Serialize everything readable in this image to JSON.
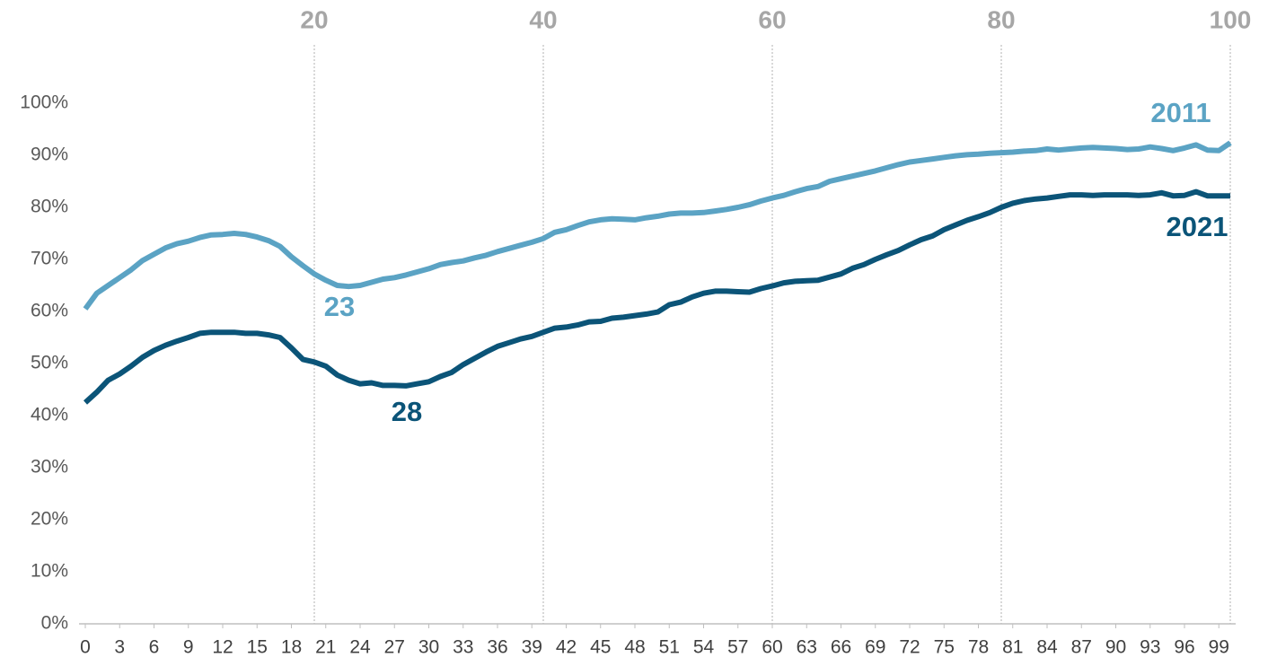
{
  "chart_data": {
    "type": "line",
    "x": [
      0,
      1,
      2,
      3,
      4,
      5,
      6,
      7,
      8,
      9,
      10,
      11,
      12,
      13,
      14,
      15,
      16,
      17,
      18,
      19,
      20,
      21,
      22,
      23,
      24,
      25,
      26,
      27,
      28,
      29,
      30,
      31,
      32,
      33,
      34,
      35,
      36,
      37,
      38,
      39,
      40,
      41,
      42,
      43,
      44,
      45,
      46,
      47,
      48,
      49,
      50,
      51,
      52,
      53,
      54,
      55,
      56,
      57,
      58,
      59,
      60,
      61,
      62,
      63,
      64,
      65,
      66,
      67,
      68,
      69,
      70,
      71,
      72,
      73,
      74,
      75,
      76,
      77,
      78,
      79,
      80,
      81,
      82,
      83,
      84,
      85,
      86,
      87,
      88,
      89,
      90,
      91,
      92,
      93,
      94,
      95,
      96,
      97,
      98,
      99,
      100
    ],
    "series": [
      {
        "name": "2011",
        "color": "#5ba3c4",
        "values": [
          60.5,
          63.5,
          65,
          66.5,
          68,
          69.8,
          71,
          72.2,
          73,
          73.5,
          74.2,
          74.7,
          74.8,
          75,
          74.8,
          74.3,
          73.6,
          72.5,
          70.5,
          68.8,
          67.2,
          66,
          65,
          64.8,
          65,
          65.6,
          66.2,
          66.5,
          67,
          67.6,
          68.2,
          69,
          69.4,
          69.7,
          70.3,
          70.8,
          71.5,
          72.1,
          72.7,
          73.3,
          74,
          75.2,
          75.7,
          76.5,
          77.2,
          77.6,
          77.8,
          77.7,
          77.6,
          78,
          78.3,
          78.7,
          78.9,
          78.9,
          79,
          79.3,
          79.6,
          80,
          80.5,
          81.2,
          81.8,
          82.3,
          83,
          83.6,
          84,
          85,
          85.5,
          86,
          86.5,
          87,
          87.6,
          88.2,
          88.7,
          89,
          89.3,
          89.6,
          89.9,
          90.1,
          90.2,
          90.4,
          90.5,
          90.6,
          90.8,
          90.9,
          91.2,
          91,
          91.2,
          91.4,
          91.5,
          91.4,
          91.3,
          91.1,
          91.2,
          91.6,
          91.3,
          90.9,
          91.4,
          92,
          91,
          90.9,
          92.4
        ]
      },
      {
        "name": "2021",
        "color": "#0b5478",
        "values": [
          42.5,
          44.5,
          46.8,
          48,
          49.5,
          51.2,
          52.5,
          53.5,
          54.3,
          55,
          55.8,
          56,
          56,
          56,
          55.8,
          55.8,
          55.5,
          55,
          53,
          50.8,
          50.3,
          49.5,
          47.8,
          46.8,
          46.1,
          46.3,
          45.8,
          45.8,
          45.7,
          46.1,
          46.5,
          47.5,
          48.3,
          49.8,
          51,
          52.2,
          53.3,
          54,
          54.7,
          55.2,
          56,
          56.8,
          57,
          57.4,
          58,
          58.1,
          58.7,
          58.9,
          59.2,
          59.5,
          59.9,
          61.3,
          61.8,
          62.8,
          63.5,
          63.9,
          63.9,
          63.8,
          63.7,
          64.4,
          64.9,
          65.5,
          65.8,
          65.9,
          66,
          66.6,
          67.2,
          68.3,
          69,
          70,
          70.9,
          71.7,
          72.8,
          73.8,
          74.5,
          75.7,
          76.6,
          77.5,
          78.2,
          79,
          80,
          80.8,
          81.3,
          81.6,
          81.8,
          82.1,
          82.4,
          82.4,
          82.3,
          82.4,
          82.4,
          82.4,
          82.3,
          82.4,
          82.8,
          82.2,
          82.3,
          83,
          82.2,
          82.2,
          82.2
        ]
      }
    ],
    "annotations": [
      {
        "text": "23",
        "series": 0
      },
      {
        "text": "28",
        "series": 1
      }
    ],
    "xlim": [
      0,
      100
    ],
    "xticks": [
      0,
      3,
      6,
      9,
      12,
      15,
      18,
      21,
      24,
      27,
      30,
      33,
      36,
      39,
      42,
      45,
      48,
      51,
      54,
      57,
      60,
      63,
      66,
      69,
      72,
      75,
      78,
      81,
      84,
      87,
      90,
      93,
      96,
      99
    ],
    "x2ticks": [
      20,
      40,
      60,
      80,
      100
    ],
    "ylim": [
      0,
      100
    ],
    "yticks": [
      {
        "value": 0,
        "label": "0%"
      },
      {
        "value": 10,
        "label": "10%"
      },
      {
        "value": 20,
        "label": "20%"
      },
      {
        "value": 30,
        "label": "30%"
      },
      {
        "value": 40,
        "label": "40%"
      },
      {
        "value": 50,
        "label": "50%"
      },
      {
        "value": 60,
        "label": "60%"
      },
      {
        "value": 70,
        "label": "70%"
      },
      {
        "value": 80,
        "label": "80%"
      },
      {
        "value": 90,
        "label": "90%"
      },
      {
        "value": 100,
        "label": "100%"
      }
    ]
  }
}
